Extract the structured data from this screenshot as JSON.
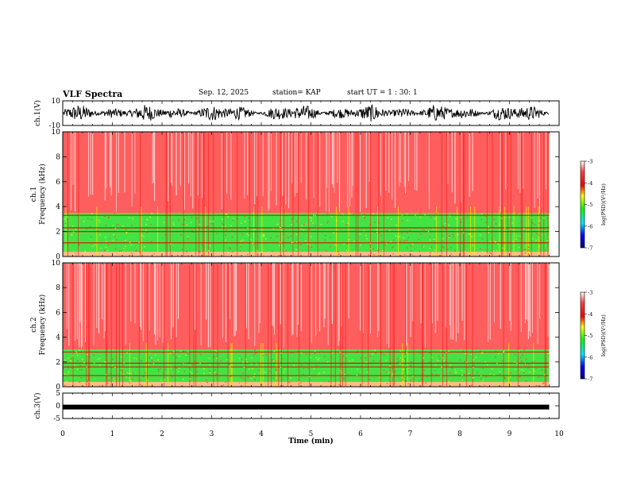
{
  "header": {
    "title": "VLF Spectra",
    "date": "Sep. 12, 2025",
    "station": "station= KAP",
    "start": "start  UT =   1 : 30: 1"
  },
  "chart_data": [
    {
      "type": "line",
      "name": "ch1-waveform",
      "ylabel": "ch.1(V)",
      "ylim": [
        -10,
        10
      ],
      "yticks": [
        10,
        -10
      ],
      "xlim": [
        0,
        10
      ],
      "description_values": {
        "amplitude_range": [
          -7,
          7
        ]
      }
    },
    {
      "type": "heatmap",
      "name": "ch1-spectrogram",
      "ylabel": "Frequency (kHz)",
      "channel_label": "ch.1",
      "ylim": [
        0,
        10
      ],
      "yticks": [
        0,
        2,
        4,
        6,
        8,
        10
      ],
      "xlim": [
        0,
        10
      ],
      "bands": [
        {
          "from": 0,
          "to": 3.5,
          "level": "mid"
        },
        {
          "from": 3.5,
          "to": 10,
          "level": "high"
        }
      ],
      "colorbar": {
        "label": "log(PSD)(V²/Hz)",
        "ticks": [
          -3,
          -4,
          -5,
          -6,
          -7
        ]
      }
    },
    {
      "type": "heatmap",
      "name": "ch2-spectrogram",
      "ylabel": "Frequency (kHz)",
      "channel_label": "ch.2",
      "ylim": [
        0,
        10
      ],
      "yticks": [
        0,
        2,
        4,
        6,
        8,
        10
      ],
      "xlim": [
        0,
        10
      ],
      "bands": [
        {
          "from": 0,
          "to": 3,
          "level": "mid"
        },
        {
          "from": 3,
          "to": 10,
          "level": "high"
        }
      ],
      "colorbar": {
        "label": "log(PSD)(V²/Hz)",
        "ticks": [
          -3,
          -4,
          -5,
          -6,
          -7
        ]
      }
    },
    {
      "type": "line",
      "name": "ch3-waveform",
      "ylabel": "ch.3(V)",
      "ylim": [
        -5,
        5
      ],
      "yticks": [
        5,
        0,
        -5
      ],
      "xlim": [
        0,
        10
      ],
      "level": -0.5,
      "data_end_x": 9.8
    }
  ],
  "xaxis": {
    "label": "Time (min)",
    "ticks": [
      "0",
      "1",
      "2",
      "3",
      "4",
      "5",
      "6",
      "7",
      "8",
      "9",
      "10"
    ],
    "range": [
      0,
      10
    ]
  },
  "colors": {
    "spectrogram_high": "#ff2020",
    "spectrogram_mid": "#30e030",
    "trace": "#000000"
  }
}
